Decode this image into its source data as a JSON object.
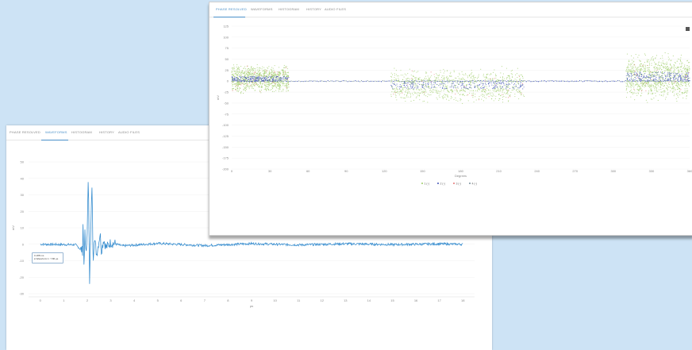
{
  "tabs": [
    "PHASE RESOLVED",
    "WAVEFORMS",
    "HISTOGRAM",
    "HISTORY",
    "AUDIO FILES"
  ],
  "back_window": {
    "active_tab": 1,
    "tooltip": {
      "line1": "0.188 ms",
      "line2": "● Waveform 1: 7.86 µs"
    },
    "chart_data": {
      "type": "line",
      "xlabel": "µs",
      "ylabel": "mV",
      "xlim": [
        -0.5,
        18.5
      ],
      "ylim": [
        -30,
        50
      ],
      "x_ticks": [
        0,
        1,
        2,
        3,
        4,
        5,
        6,
        7,
        8,
        9,
        10,
        11,
        12,
        13,
        14,
        15,
        16,
        17,
        18
      ],
      "y_ticks": [
        50,
        40,
        30,
        20,
        10,
        0,
        -10,
        -20,
        -30
      ],
      "color": "#3a8fd0",
      "series": [
        {
          "values": [
            [
              0,
              0
            ],
            [
              1.5,
              -0.3
            ],
            [
              1.8,
              -4
            ],
            [
              1.82,
              13
            ],
            [
              1.86,
              -12
            ],
            [
              1.9,
              6
            ],
            [
              1.95,
              -8
            ],
            [
              2.0,
              9
            ],
            [
              2.05,
              42
            ],
            [
              2.1,
              -22
            ],
            [
              2.15,
              8
            ],
            [
              2.2,
              36
            ],
            [
              2.25,
              -10
            ],
            [
              2.3,
              4
            ],
            [
              2.4,
              -6
            ],
            [
              2.5,
              2
            ],
            [
              2.55,
              7
            ],
            [
              2.6,
              -4
            ],
            [
              2.7,
              3
            ],
            [
              2.8,
              -2
            ],
            [
              3.0,
              1
            ],
            [
              3.5,
              -1
            ],
            [
              5,
              0.5
            ],
            [
              7,
              -0.8
            ],
            [
              9,
              0.4
            ],
            [
              11,
              -0.4
            ],
            [
              13,
              0.3
            ],
            [
              15,
              -0.2
            ],
            [
              17,
              0.2
            ],
            [
              18,
              0
            ]
          ]
        }
      ]
    }
  },
  "front_window": {
    "active_tab": 0,
    "chart_data": {
      "type": "scatter",
      "xlabel": "Degrees",
      "ylabel": "mV",
      "xlim": [
        0,
        360
      ],
      "ylim": [
        -200,
        125
      ],
      "x_ticks": [
        0,
        30,
        60,
        90,
        120,
        150,
        180,
        210,
        240,
        270,
        300,
        330,
        360
      ],
      "y_ticks": [
        125,
        100,
        75,
        50,
        25,
        0,
        -25,
        -50,
        -75,
        -100,
        -125,
        -150,
        -175,
        -200
      ],
      "legend": [
        "1 (-)",
        "2 (-)",
        "3 (-)",
        "4 (-)"
      ],
      "legend_colors": [
        "#9ccc65",
        "#3f51b5",
        "#e57373",
        "#78909c"
      ],
      "legend_position": "bottom",
      "clusters": [
        {
          "x_range": [
            0,
            45
          ],
          "y_center": 5,
          "spread": 18
        },
        {
          "x_range": [
            125,
            230
          ],
          "y_center": -10,
          "spread": 22
        },
        {
          "x_range": [
            310,
            360
          ],
          "y_center": 10,
          "spread": 30
        }
      ]
    }
  }
}
